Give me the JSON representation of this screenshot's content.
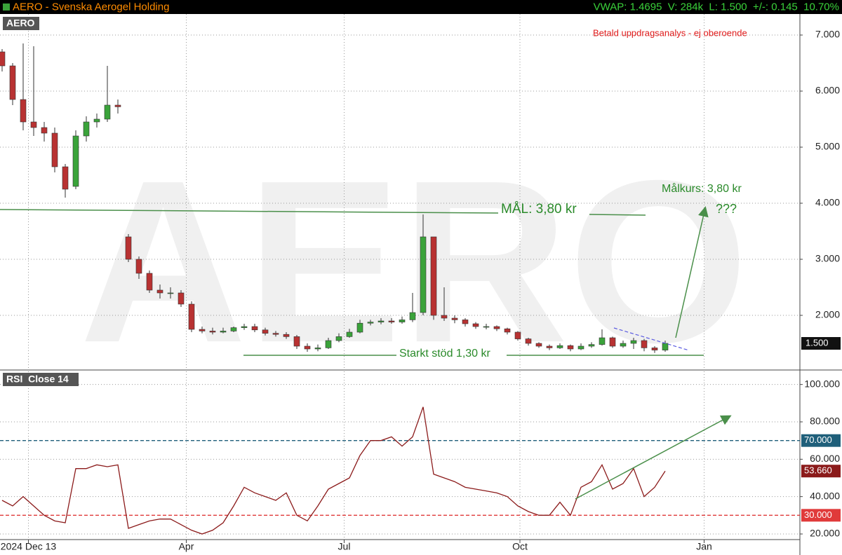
{
  "header": {
    "title": "AERO - Svenska Aerogel Holding",
    "quote": "VWAP: 1.4695  V: 284k  L: 1.500  +/-: 0.145  10.70%"
  },
  "chart_data": [
    {
      "type": "candlestick",
      "panel_label": "AERO",
      "watermark": "AERO",
      "annotations": {
        "target": "MÅL: 3,80 kr",
        "target_note": "Målkurs: 3,80 kr",
        "question": "???",
        "support": "Starkt stöd 1,30 kr",
        "disclaimer": "Betald uppdragsanalys - ej oberoende"
      },
      "xlim": [
        -0.2,
        75.8
      ],
      "xticks": [
        {
          "value": 2.5,
          "label": "2024 Dec 13"
        },
        {
          "value": 17.5,
          "label": "Apr"
        },
        {
          "value": 32.5,
          "label": "Jul"
        },
        {
          "value": 49.2,
          "label": "Oct"
        },
        {
          "value": 66.7,
          "label": "Jan"
        }
      ],
      "ylim": [
        1.0375,
        7.375
      ],
      "yticks": [
        {
          "value": 2,
          "label": "2.000"
        },
        {
          "value": 3,
          "label": "3.000"
        },
        {
          "value": 4,
          "label": "4.000"
        },
        {
          "value": 5,
          "label": "5.000"
        },
        {
          "value": 6,
          "label": "6.000"
        },
        {
          "value": 7,
          "label": "7.000"
        }
      ],
      "grid": true,
      "up_color": "#3aa33a",
      "down_color": "#b83232",
      "last_value_label": "1.500",
      "open": [
        6.7,
        6.45,
        5.85,
        5.45,
        5.35,
        5.25,
        4.65,
        4.3,
        5.2,
        5.45,
        5.5,
        5.75,
        3.4,
        3.0,
        2.75,
        2.45,
        2.4,
        2.4,
        2.2,
        1.75,
        1.72,
        1.7,
        1.72,
        1.78,
        1.8,
        1.74,
        1.68,
        1.66,
        1.62,
        1.45,
        1.4,
        1.42,
        1.55,
        1.62,
        1.7,
        1.86,
        1.88,
        1.9,
        1.88,
        1.92,
        2.05,
        3.4,
        2.0,
        1.95,
        1.92,
        1.85,
        1.8,
        1.8,
        1.76,
        1.7,
        1.58,
        1.5,
        1.45,
        1.42,
        1.46,
        1.4,
        1.45,
        1.48,
        1.6,
        1.45,
        1.5,
        1.55,
        1.42,
        1.38
      ],
      "high": [
        6.75,
        6.5,
        6.85,
        6.8,
        5.45,
        5.35,
        4.7,
        5.3,
        5.55,
        5.6,
        6.45,
        5.85,
        3.45,
        3.05,
        2.8,
        2.55,
        2.5,
        2.45,
        2.25,
        1.8,
        1.78,
        1.78,
        1.8,
        1.85,
        1.85,
        1.78,
        1.72,
        1.7,
        1.65,
        1.5,
        1.48,
        1.6,
        1.68,
        1.76,
        1.92,
        1.92,
        1.95,
        1.95,
        1.98,
        2.4,
        3.8,
        3.4,
        2.5,
        2.0,
        1.95,
        1.88,
        1.85,
        1.82,
        1.78,
        1.72,
        1.6,
        1.52,
        1.48,
        1.5,
        1.48,
        1.5,
        1.52,
        1.75,
        1.62,
        1.55,
        1.6,
        1.58,
        1.45,
        1.55
      ],
      "low": [
        6.35,
        5.75,
        5.3,
        5.2,
        5.1,
        4.55,
        4.1,
        4.25,
        5.1,
        5.35,
        5.45,
        5.6,
        2.95,
        2.65,
        2.4,
        2.3,
        2.3,
        2.15,
        1.7,
        1.68,
        1.66,
        1.68,
        1.7,
        1.74,
        1.7,
        1.64,
        1.62,
        1.58,
        1.4,
        1.35,
        1.36,
        1.4,
        1.52,
        1.6,
        1.68,
        1.82,
        1.84,
        1.85,
        1.85,
        1.88,
        2.0,
        1.92,
        1.9,
        1.86,
        1.8,
        1.76,
        1.75,
        1.72,
        1.66,
        1.55,
        1.46,
        1.42,
        1.38,
        1.4,
        1.36,
        1.38,
        1.42,
        1.46,
        1.42,
        1.42,
        1.4,
        1.36,
        1.33,
        1.35
      ],
      "close": [
        6.45,
        5.85,
        5.45,
        5.35,
        5.25,
        4.65,
        4.25,
        5.2,
        5.45,
        5.5,
        5.75,
        5.72,
        3.0,
        2.75,
        2.45,
        2.4,
        2.4,
        2.2,
        1.75,
        1.72,
        1.7,
        1.72,
        1.78,
        1.8,
        1.74,
        1.68,
        1.66,
        1.62,
        1.45,
        1.4,
        1.42,
        1.55,
        1.62,
        1.7,
        1.86,
        1.88,
        1.9,
        1.88,
        1.92,
        2.05,
        3.4,
        2.0,
        1.95,
        1.92,
        1.85,
        1.8,
        1.8,
        1.76,
        1.7,
        1.58,
        1.5,
        1.45,
        1.42,
        1.46,
        1.4,
        1.45,
        1.48,
        1.6,
        1.45,
        1.5,
        1.55,
        1.42,
        1.38,
        1.5
      ]
    },
    {
      "type": "line",
      "panel_label": "RSI  Close 14",
      "xlim": [
        -0.2,
        75.8
      ],
      "ylim": [
        17,
        107
      ],
      "yticks": [
        {
          "value": 20,
          "label": "20.000"
        },
        {
          "value": 40,
          "label": "40.000"
        },
        {
          "value": 60,
          "label": "60.000"
        },
        {
          "value": 80,
          "label": "80.000"
        },
        {
          "value": 100,
          "label": "100.000"
        }
      ],
      "grid": true,
      "color": "#8b1a1a",
      "hlines": [
        {
          "value": 70,
          "label": "70.000",
          "color": "#1f5f7a"
        },
        {
          "value": 30,
          "label": "30.000",
          "color": "#e03a3a"
        }
      ],
      "last_value_label": "53.660",
      "values": [
        38,
        35,
        40,
        35,
        30,
        27,
        26,
        55,
        55,
        57,
        56,
        57,
        23,
        25,
        27,
        28,
        28,
        25,
        22,
        20,
        22,
        26,
        35,
        45,
        42,
        40,
        38,
        42,
        30,
        27,
        35,
        44,
        47,
        50,
        62,
        70,
        70,
        72,
        67,
        72,
        88,
        52,
        50,
        48,
        45,
        44,
        43,
        42,
        40,
        35,
        32,
        30,
        30,
        37,
        30,
        45,
        48,
        57,
        44,
        47,
        55,
        40,
        45,
        53.66
      ]
    }
  ]
}
